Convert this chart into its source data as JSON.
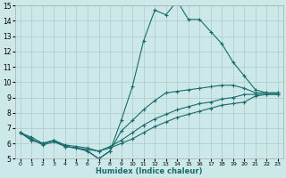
{
  "xlabel": "Humidex (Indice chaleur)",
  "xlim": [
    -0.5,
    23.5
  ],
  "ylim": [
    5,
    15
  ],
  "yticks": [
    5,
    6,
    7,
    8,
    9,
    10,
    11,
    12,
    13,
    14,
    15
  ],
  "xticks": [
    0,
    1,
    2,
    3,
    4,
    5,
    6,
    7,
    8,
    9,
    10,
    11,
    12,
    13,
    14,
    15,
    16,
    17,
    18,
    19,
    20,
    21,
    22,
    23
  ],
  "background_color": "#cce8e8",
  "grid_color": "#aacccc",
  "line_color": "#1a6b6b",
  "line1_x": [
    0,
    1,
    2,
    3,
    4,
    5,
    6,
    7,
    8,
    9,
    10,
    11,
    12,
    13,
    14,
    15,
    16,
    17,
    18,
    19,
    20,
    21,
    22,
    23
  ],
  "line1_y": [
    6.7,
    6.2,
    6.0,
    6.2,
    5.8,
    5.7,
    5.5,
    5.0,
    5.5,
    7.5,
    9.7,
    12.7,
    14.7,
    14.4,
    15.3,
    14.1,
    14.1,
    13.3,
    12.5,
    11.3,
    10.4,
    9.5,
    9.3,
    9.3
  ],
  "line2_x": [
    0,
    1,
    2,
    3,
    4,
    5,
    6,
    7,
    8,
    9,
    10,
    11,
    12,
    13,
    14,
    15,
    16,
    17,
    18,
    19,
    20,
    21,
    22,
    23
  ],
  "line2_y": [
    6.7,
    6.2,
    6.0,
    6.2,
    5.8,
    5.7,
    5.5,
    5.0,
    5.5,
    6.8,
    7.5,
    8.2,
    8.8,
    9.3,
    9.4,
    9.5,
    9.6,
    9.7,
    9.8,
    9.8,
    9.6,
    9.3,
    9.3,
    9.3
  ],
  "line3_x": [
    0,
    1,
    2,
    3,
    4,
    5,
    6,
    7,
    8,
    9,
    10,
    11,
    12,
    13,
    14,
    15,
    16,
    17,
    18,
    19,
    20,
    21,
    22,
    23
  ],
  "line3_y": [
    6.7,
    6.4,
    6.0,
    6.2,
    5.9,
    5.8,
    5.7,
    5.5,
    5.8,
    6.2,
    6.7,
    7.2,
    7.6,
    7.9,
    8.2,
    8.4,
    8.6,
    8.7,
    8.9,
    9.0,
    9.2,
    9.2,
    9.2,
    9.2
  ],
  "line4_x": [
    0,
    1,
    2,
    3,
    4,
    5,
    6,
    7,
    8,
    9,
    10,
    11,
    12,
    13,
    14,
    15,
    16,
    17,
    18,
    19,
    20,
    21,
    22,
    23
  ],
  "line4_y": [
    6.7,
    6.3,
    5.9,
    6.1,
    5.8,
    5.7,
    5.6,
    5.5,
    5.7,
    6.0,
    6.3,
    6.7,
    7.1,
    7.4,
    7.7,
    7.9,
    8.1,
    8.3,
    8.5,
    8.6,
    8.7,
    9.1,
    9.2,
    9.2
  ]
}
